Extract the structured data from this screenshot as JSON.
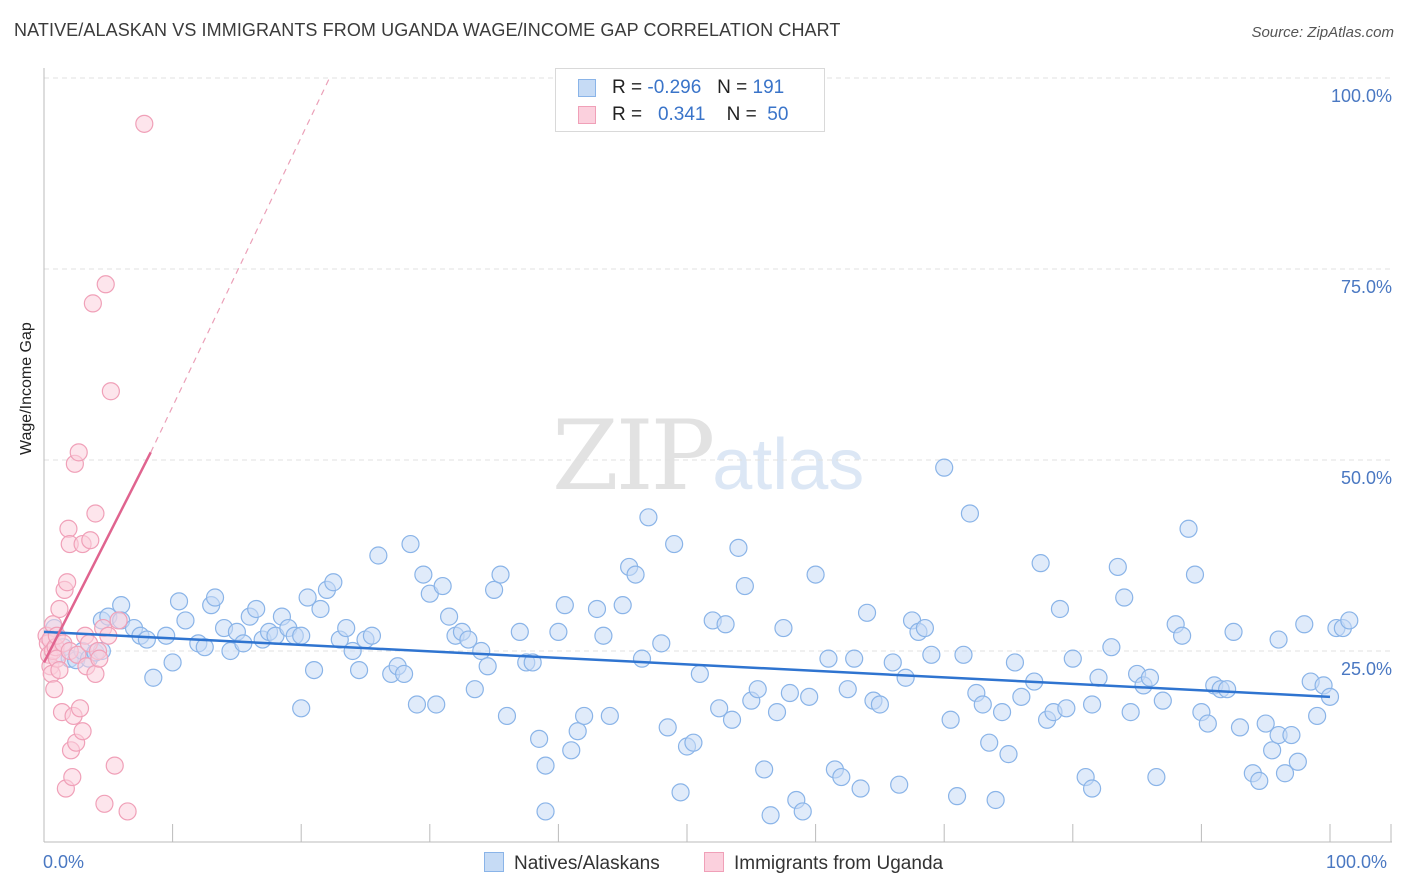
{
  "title": "NATIVE/ALASKAN VS IMMIGRANTS FROM UGANDA WAGE/INCOME GAP CORRELATION CHART",
  "source": "Source: ZipAtlas.com",
  "watermark": {
    "zip": "ZIP",
    "atlas": "atlas"
  },
  "legend": {
    "r_label": "R =",
    "n_label": "N =",
    "series": [
      {
        "name": "Natives/Alaskans",
        "r": "-0.296",
        "n": "191",
        "color": "#8ab4e8",
        "fill": "#c6dbf5"
      },
      {
        "name": "Immigrants from Uganda",
        "r": "0.341",
        "n": "50",
        "color": "#f0a0b8",
        "fill": "#fbd0dd"
      }
    ]
  },
  "chart_data": {
    "type": "scatter",
    "title": "NATIVE/ALASKAN VS IMMIGRANTS FROM UGANDA WAGE/INCOME GAP CORRELATION CHART",
    "xlabel": "",
    "ylabel": "Wage/Income Gap",
    "xlim": [
      0,
      100
    ],
    "ylim": [
      0,
      100
    ],
    "x_tick_labels": [
      "0.0%",
      "100.0%"
    ],
    "y_tick_labels": [
      "25.0%",
      "50.0%",
      "75.0%",
      "100.0%"
    ],
    "y_ticks": [
      25,
      50,
      75,
      100
    ],
    "series": [
      {
        "name": "Natives/Alaskans",
        "color": "#6fa3e0",
        "trend": {
          "x": [
            0,
            100
          ],
          "y": [
            27.5,
            19.0
          ]
        },
        "points": [
          [
            0.5,
            26.5
          ],
          [
            0.8,
            28
          ],
          [
            1,
            24.5
          ],
          [
            1.5,
            25.5
          ],
          [
            2,
            24
          ],
          [
            2.5,
            23.8
          ],
          [
            3,
            25
          ],
          [
            3.5,
            24
          ],
          [
            4,
            24.8
          ],
          [
            4.5,
            25
          ],
          [
            4.5,
            29
          ],
          [
            5,
            29.5
          ],
          [
            6,
            31
          ],
          [
            6,
            29
          ],
          [
            7,
            28
          ],
          [
            7.5,
            27
          ],
          [
            8,
            26.5
          ],
          [
            8.5,
            21.5
          ],
          [
            9.5,
            27
          ],
          [
            10,
            23.5
          ],
          [
            10.5,
            31.5
          ],
          [
            11,
            29
          ],
          [
            12,
            26
          ],
          [
            12.5,
            25.5
          ],
          [
            13,
            31
          ],
          [
            13.3,
            32
          ],
          [
            14,
            28
          ],
          [
            14.5,
            25
          ],
          [
            15,
            27.5
          ],
          [
            15.5,
            26
          ],
          [
            16,
            29.5
          ],
          [
            16.5,
            30.5
          ],
          [
            17,
            26.5
          ],
          [
            17.5,
            27.5
          ],
          [
            18,
            27
          ],
          [
            18.5,
            29.5
          ],
          [
            19,
            28
          ],
          [
            19.5,
            27
          ],
          [
            20,
            27
          ],
          [
            20.5,
            32
          ],
          [
            20,
            17.5
          ],
          [
            21,
            22.5
          ],
          [
            21.5,
            30.5
          ],
          [
            22,
            33
          ],
          [
            22.5,
            34
          ],
          [
            23,
            26.5
          ],
          [
            23.5,
            28
          ],
          [
            24,
            25
          ],
          [
            24.5,
            22.5
          ],
          [
            25,
            26.5
          ],
          [
            25.5,
            27
          ],
          [
            26,
            37.5
          ],
          [
            27,
            22
          ],
          [
            27.5,
            23
          ],
          [
            28,
            22
          ],
          [
            28.5,
            39
          ],
          [
            29,
            18
          ],
          [
            29.5,
            35
          ],
          [
            30,
            32.5
          ],
          [
            30.5,
            18
          ],
          [
            31,
            33.5
          ],
          [
            31.5,
            29.5
          ],
          [
            32,
            27
          ],
          [
            32.5,
            27.5
          ],
          [
            33,
            26.5
          ],
          [
            33.5,
            20
          ],
          [
            34,
            25
          ],
          [
            34.5,
            23
          ],
          [
            35,
            33
          ],
          [
            35.5,
            35
          ],
          [
            36,
            16.5
          ],
          [
            37,
            27.5
          ],
          [
            37.5,
            23.5
          ],
          [
            38,
            23.5
          ],
          [
            38.5,
            13.5
          ],
          [
            39,
            10
          ],
          [
            39,
            4
          ],
          [
            40,
            27.5
          ],
          [
            40.5,
            31
          ],
          [
            41,
            12
          ],
          [
            41.5,
            14.5
          ],
          [
            42,
            16.5
          ],
          [
            43,
            30.5
          ],
          [
            43.5,
            27
          ],
          [
            44,
            16.5
          ],
          [
            45,
            31
          ],
          [
            45.5,
            36
          ],
          [
            46,
            35
          ],
          [
            46.5,
            24
          ],
          [
            47,
            42.5
          ],
          [
            48,
            26
          ],
          [
            48.5,
            15
          ],
          [
            49,
            39
          ],
          [
            49.5,
            6.5
          ],
          [
            50,
            12.5
          ],
          [
            50.5,
            13
          ],
          [
            51,
            22
          ],
          [
            52,
            29
          ],
          [
            52.5,
            17.5
          ],
          [
            53,
            28.5
          ],
          [
            53.5,
            16
          ],
          [
            54,
            38.5
          ],
          [
            54.5,
            33.5
          ],
          [
            55,
            18.5
          ],
          [
            55.5,
            20
          ],
          [
            56,
            9.5
          ],
          [
            56.5,
            3.5
          ],
          [
            57,
            17
          ],
          [
            57.5,
            28
          ],
          [
            58,
            19.5
          ],
          [
            58.5,
            5.5
          ],
          [
            59,
            4
          ],
          [
            59.5,
            19
          ],
          [
            60,
            35
          ],
          [
            61,
            24
          ],
          [
            61.5,
            9.5
          ],
          [
            62,
            8.5
          ],
          [
            62.5,
            20
          ],
          [
            63,
            24
          ],
          [
            63.5,
            7
          ],
          [
            64,
            30
          ],
          [
            64.5,
            18.5
          ],
          [
            65,
            18
          ],
          [
            66,
            23.5
          ],
          [
            66.5,
            7.5
          ],
          [
            67,
            21.5
          ],
          [
            67.5,
            29
          ],
          [
            68,
            27.5
          ],
          [
            68.5,
            28
          ],
          [
            69,
            24.5
          ],
          [
            70,
            49
          ],
          [
            70.5,
            16
          ],
          [
            71,
            6
          ],
          [
            71.5,
            24.5
          ],
          [
            72,
            43
          ],
          [
            72.5,
            19.5
          ],
          [
            73,
            18
          ],
          [
            74,
            5.5
          ],
          [
            74.5,
            17
          ],
          [
            75,
            11.5
          ],
          [
            75.5,
            23.5
          ],
          [
            76,
            19
          ],
          [
            77,
            21
          ],
          [
            77.5,
            36.5
          ],
          [
            78,
            16
          ],
          [
            78.5,
            17
          ],
          [
            79,
            30.5
          ],
          [
            79.5,
            17.5
          ],
          [
            80,
            24
          ],
          [
            81,
            8.5
          ],
          [
            81.5,
            7
          ],
          [
            81.5,
            18
          ],
          [
            82,
            21.5
          ],
          [
            83,
            25.5
          ],
          [
            83.5,
            36
          ],
          [
            84,
            32
          ],
          [
            84.5,
            17
          ],
          [
            85,
            22
          ],
          [
            85.5,
            20.5
          ],
          [
            86,
            21.5
          ],
          [
            86.5,
            8.5
          ],
          [
            87,
            18.5
          ],
          [
            88,
            28.5
          ],
          [
            88.5,
            27
          ],
          [
            89,
            41
          ],
          [
            89.5,
            35
          ],
          [
            90,
            17
          ],
          [
            90.5,
            15.5
          ],
          [
            91,
            20.5
          ],
          [
            91.5,
            20
          ],
          [
            92,
            20
          ],
          [
            92.5,
            27.5
          ],
          [
            93,
            15
          ],
          [
            94,
            9
          ],
          [
            94.5,
            8
          ],
          [
            95,
            15.5
          ],
          [
            95.5,
            12
          ],
          [
            96,
            14
          ],
          [
            96.5,
            9
          ],
          [
            97,
            14
          ],
          [
            97.5,
            10.5
          ],
          [
            98,
            28.5
          ],
          [
            98.5,
            21
          ],
          [
            99,
            16.5
          ],
          [
            99.5,
            20.5
          ],
          [
            100,
            19
          ],
          [
            100.5,
            28
          ],
          [
            101,
            28
          ],
          [
            101.5,
            29
          ],
          [
            96,
            26.5
          ],
          [
            73.5,
            13
          ]
        ]
      },
      {
        "name": "Immigrants from Uganda",
        "color": "#eb8aa9",
        "trend": {
          "x": [
            0,
            8.3
          ],
          "y": [
            23.5,
            51.0
          ]
        },
        "trend_extended": {
          "x": [
            8.3,
            22.2
          ],
          "y": [
            51.0,
            100
          ]
        },
        "points": [
          [
            0.2,
            27
          ],
          [
            0.3,
            26
          ],
          [
            0.4,
            24.5
          ],
          [
            0.5,
            23
          ],
          [
            0.5,
            26.5
          ],
          [
            0.6,
            22
          ],
          [
            0.7,
            25
          ],
          [
            0.7,
            28.5
          ],
          [
            0.8,
            20
          ],
          [
            0.9,
            25.5
          ],
          [
            1,
            27
          ],
          [
            1,
            24
          ],
          [
            1.2,
            30.5
          ],
          [
            1.2,
            22.5
          ],
          [
            1.4,
            17
          ],
          [
            1.5,
            26
          ],
          [
            1.6,
            33
          ],
          [
            1.7,
            7
          ],
          [
            1.8,
            34
          ],
          [
            1.9,
            41
          ],
          [
            2,
            39
          ],
          [
            2,
            25
          ],
          [
            2.1,
            12
          ],
          [
            2.2,
            8.5
          ],
          [
            2.3,
            16.5
          ],
          [
            2.4,
            49.5
          ],
          [
            2.5,
            13
          ],
          [
            2.6,
            24.5
          ],
          [
            2.7,
            51
          ],
          [
            2.8,
            17.5
          ],
          [
            3,
            14.5
          ],
          [
            3,
            39
          ],
          [
            3.2,
            27
          ],
          [
            3.3,
            23
          ],
          [
            3.5,
            26
          ],
          [
            3.6,
            39.5
          ],
          [
            3.8,
            70.5
          ],
          [
            4,
            43
          ],
          [
            4,
            22
          ],
          [
            4.2,
            25
          ],
          [
            4.3,
            24
          ],
          [
            4.6,
            28
          ],
          [
            4.7,
            5
          ],
          [
            4.8,
            73
          ],
          [
            5,
            27
          ],
          [
            5.2,
            59
          ],
          [
            5.5,
            10
          ],
          [
            5.8,
            29
          ],
          [
            6.5,
            4
          ],
          [
            7.8,
            94
          ]
        ]
      }
    ]
  }
}
